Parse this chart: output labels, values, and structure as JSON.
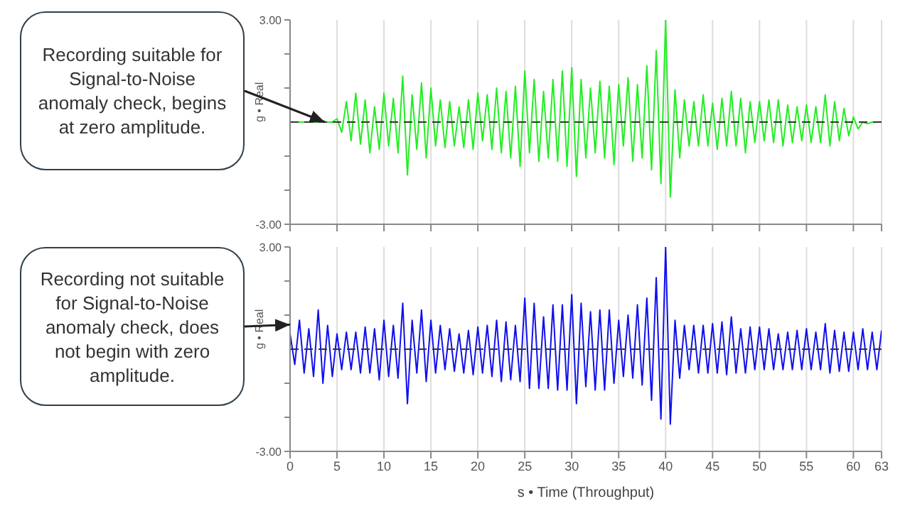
{
  "chart_data": [
    {
      "type": "line",
      "ylabel": "g • Real",
      "x": [
        0,
        0.5,
        1,
        1.5,
        2,
        2.5,
        3,
        3.5,
        4,
        4.5,
        5,
        5.5,
        6,
        6.5,
        7,
        7.5,
        8,
        8.5,
        9,
        9.5,
        10,
        10.5,
        11,
        11.5,
        12,
        12.5,
        13,
        13.5,
        14,
        14.5,
        15,
        15.5,
        16,
        16.5,
        17,
        17.5,
        18,
        18.5,
        19,
        19.5,
        20,
        20.5,
        21,
        21.5,
        22,
        22.5,
        23,
        23.5,
        24,
        24.5,
        25,
        25.5,
        26,
        26.5,
        27,
        27.5,
        28,
        28.5,
        29,
        29.5,
        30,
        30.5,
        31,
        31.5,
        32,
        32.5,
        33,
        33.5,
        34,
        34.5,
        35,
        35.5,
        36,
        36.5,
        37,
        37.5,
        38,
        38.5,
        39,
        39.5,
        40,
        40.5,
        41,
        41.5,
        42,
        42.5,
        43,
        43.5,
        44,
        44.5,
        45,
        45.5,
        46,
        46.5,
        47,
        47.5,
        48,
        48.5,
        49,
        49.5,
        50,
        50.5,
        51,
        51.5,
        52,
        52.5,
        53,
        53.5,
        54,
        54.5,
        55,
        55.5,
        56,
        56.5,
        57,
        57.5,
        58,
        58.5,
        59,
        59.5,
        60,
        60.5,
        61,
        61.5,
        62,
        62.5,
        63
      ],
      "series": [
        {
          "color": "#22ee22",
          "values": [
            0,
            0,
            0,
            0,
            0,
            0,
            0,
            0,
            0,
            0,
            0.1,
            -0.3,
            0.6,
            -0.55,
            0.85,
            -0.65,
            0.65,
            -0.9,
            0.45,
            -0.8,
            0.85,
            -0.7,
            0.7,
            -0.9,
            1.35,
            -1.55,
            0.8,
            -0.8,
            1.15,
            -1.05,
            1.0,
            -0.7,
            0.65,
            -0.75,
            0.6,
            -0.7,
            0.45,
            -0.75,
            0.65,
            -0.8,
            0.85,
            -0.55,
            0.8,
            -0.8,
            1.0,
            -0.9,
            0.9,
            -1.05,
            1.05,
            -1.3,
            1.5,
            -0.9,
            1.25,
            -1.15,
            0.9,
            -1.05,
            1.25,
            -1.15,
            1.5,
            -1.3,
            1.6,
            -1.6,
            1.25,
            -1.05,
            1.0,
            -0.9,
            1.2,
            -1.05,
            1.05,
            -1.25,
            1.1,
            -0.7,
            1.3,
            -1.15,
            1.1,
            -1.05,
            1.65,
            -1.4,
            2.1,
            -1.8,
            3.0,
            -2.2,
            0.95,
            -1.05,
            0.65,
            -0.7,
            0.6,
            -0.7,
            0.8,
            -0.7,
            0.55,
            -0.8,
            0.7,
            -0.7,
            0.9,
            -0.7,
            0.7,
            -0.9,
            0.6,
            -0.6,
            0.6,
            -0.55,
            0.65,
            -0.6,
            0.65,
            -0.7,
            0.5,
            -0.6,
            0.45,
            -0.55,
            0.5,
            -0.6,
            0.45,
            -0.6,
            0.8,
            -0.7,
            0.6,
            -0.55,
            0.4,
            -0.4,
            0.15,
            -0.2,
            0,
            -0.05,
            0,
            0,
            0
          ]
        }
      ],
      "xlim": [
        0,
        63
      ],
      "xticks": [
        0,
        5,
        10,
        15,
        20,
        25,
        30,
        35,
        40,
        45,
        50,
        55,
        60,
        63
      ],
      "ylim": [
        -3,
        3
      ],
      "yticks": [
        {
          "value": -3,
          "label": "-3.00"
        },
        {
          "value": -2,
          "label": null
        },
        {
          "value": -1,
          "label": null
        },
        {
          "value": 1,
          "label": null
        },
        {
          "value": 2,
          "label": null
        },
        {
          "value": 3,
          "label": "3.00"
        }
      ],
      "grid": "x",
      "tick_labels": "y",
      "ref_lines": [
        {
          "axis": "y",
          "value": 0,
          "label": null,
          "color": "#333333",
          "line_style": "dashed"
        }
      ],
      "annotations": [
        {
          "text": "Recording suitable for Signal-to-Noise anomaly check, begins at zero amplitude.",
          "x": 3.7,
          "y": 0
        }
      ]
    },
    {
      "type": "line",
      "ylabel": "g • Real",
      "xlabel": "s • Time (Throughput)",
      "x": [
        0,
        0.5,
        1,
        1.5,
        2,
        2.5,
        3,
        3.5,
        4,
        4.5,
        5,
        5.5,
        6,
        6.5,
        7,
        7.5,
        8,
        8.5,
        9,
        9.5,
        10,
        10.5,
        11,
        11.5,
        12,
        12.5,
        13,
        13.5,
        14,
        14.5,
        15,
        15.5,
        16,
        16.5,
        17,
        17.5,
        18,
        18.5,
        19,
        19.5,
        20,
        20.5,
        21,
        21.5,
        22,
        22.5,
        23,
        23.5,
        24,
        24.5,
        25,
        25.5,
        26,
        26.5,
        27,
        27.5,
        28,
        28.5,
        29,
        29.5,
        30,
        30.5,
        31,
        31.5,
        32,
        32.5,
        33,
        33.5,
        34,
        34.5,
        35,
        35.5,
        36,
        36.5,
        37,
        37.5,
        38,
        38.5,
        39,
        39.5,
        40,
        40.5,
        41,
        41.5,
        42,
        42.5,
        43,
        43.5,
        44,
        44.5,
        45,
        45.5,
        46,
        46.5,
        47,
        47.5,
        48,
        48.5,
        49,
        49.5,
        50,
        50.5,
        51,
        51.5,
        52,
        52.5,
        53,
        53.5,
        54,
        54.5,
        55,
        55.5,
        56,
        56.5,
        57,
        57.5,
        58,
        58.5,
        59,
        59.5,
        60,
        60.5,
        61,
        61.5,
        62,
        62.5,
        63
      ],
      "series": [
        {
          "color": "#1010ee",
          "values": [
            0.45,
            -0.45,
            0.85,
            -0.7,
            0.6,
            -0.8,
            1.15,
            -1.0,
            0.7,
            -0.8,
            0.45,
            -0.6,
            0.5,
            -0.6,
            0.5,
            -0.7,
            0.65,
            -0.7,
            0.6,
            -0.9,
            0.85,
            -0.8,
            0.7,
            -0.85,
            1.35,
            -1.6,
            0.85,
            -0.7,
            1.15,
            -0.95,
            0.85,
            -0.7,
            0.7,
            -0.6,
            0.6,
            -0.65,
            0.45,
            -0.7,
            0.55,
            -0.75,
            0.65,
            -0.7,
            0.7,
            -0.8,
            0.85,
            -0.95,
            0.8,
            -0.9,
            0.7,
            -0.95,
            1.5,
            -1.15,
            1.35,
            -1.15,
            0.95,
            -1.15,
            1.3,
            -1.2,
            1.3,
            -1.2,
            1.6,
            -1.6,
            1.35,
            -1.1,
            1.1,
            -1.2,
            1.15,
            -1.2,
            1.15,
            -1.0,
            0.85,
            -0.8,
            1.0,
            -0.85,
            1.3,
            -1.05,
            1.5,
            -1.5,
            2.1,
            -2.05,
            3.0,
            -2.2,
            0.85,
            -0.85,
            0.7,
            -0.6,
            0.7,
            -0.7,
            0.7,
            -0.7,
            0.75,
            -0.7,
            0.8,
            -0.75,
            0.95,
            -0.7,
            0.6,
            -0.7,
            0.65,
            -0.6,
            0.65,
            -0.6,
            0.6,
            -0.6,
            0.45,
            -0.6,
            0.5,
            -0.6,
            0.55,
            -0.6,
            0.6,
            -0.6,
            0.5,
            -0.6,
            0.75,
            -0.7,
            0.55,
            -0.65,
            0.5,
            -0.65,
            0.5,
            -0.6,
            0.6,
            -0.6,
            0.5,
            -0.6,
            0.55
          ]
        }
      ],
      "xlim": [
        0,
        63
      ],
      "xticks": [
        0,
        5,
        10,
        15,
        20,
        25,
        30,
        35,
        40,
        45,
        50,
        55,
        60,
        63
      ],
      "ylim": [
        -3,
        3
      ],
      "yticks": [
        {
          "value": -3,
          "label": "-3.00"
        },
        {
          "value": -2,
          "label": null
        },
        {
          "value": -1,
          "label": null
        },
        {
          "value": 1,
          "label": null
        },
        {
          "value": 2,
          "label": null
        },
        {
          "value": 3,
          "label": "3.00"
        }
      ],
      "grid": "x",
      "ref_lines": [
        {
          "axis": "y",
          "value": 0,
          "label": null,
          "color": "#333333",
          "line_style": "dashed"
        }
      ],
      "annotations": [
        "Recording not suitable for Signal-to-Noise anomaly check, does not begin with zero amplitude."
      ]
    }
  ]
}
